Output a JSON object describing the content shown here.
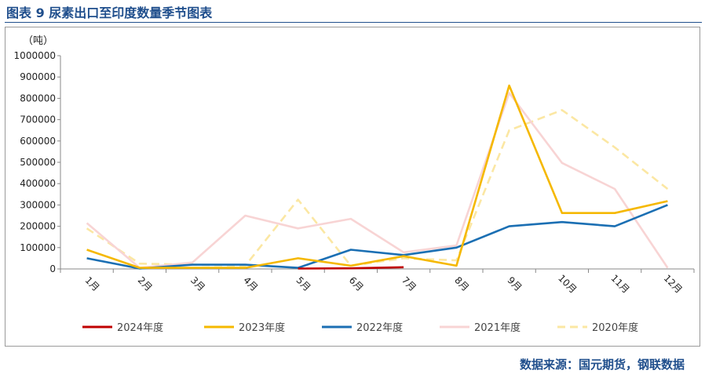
{
  "header": {
    "title": "图表 9  尿素出口至印度数量季节图表"
  },
  "footer": {
    "source": "数据来源：国元期货，钢联数据"
  },
  "chart_data": {
    "type": "line",
    "unit_label": "（吨）",
    "categories": [
      "1月",
      "2月",
      "3月",
      "4月",
      "5月",
      "6月",
      "7月",
      "8月",
      "9月",
      "10月",
      "11月",
      "12月"
    ],
    "ylim": [
      0,
      1000000
    ],
    "yticks": [
      0,
      100000,
      200000,
      300000,
      400000,
      500000,
      600000,
      700000,
      800000,
      900000,
      1000000
    ],
    "grid": false,
    "legend_position": "bottom",
    "series": [
      {
        "name": "2024年度",
        "color": "#c00000",
        "dash": "solid",
        "values": [
          null,
          null,
          null,
          null,
          2000,
          3000,
          8000,
          null,
          null,
          null,
          null,
          null
        ]
      },
      {
        "name": "2023年度",
        "color": "#f5b800",
        "dash": "solid",
        "values": [
          90000,
          5000,
          5000,
          5000,
          50000,
          15000,
          60000,
          15000,
          860000,
          262000,
          262000,
          318000
        ]
      },
      {
        "name": "2022年度",
        "color": "#1b6fb3",
        "dash": "solid",
        "values": [
          50000,
          2000,
          20000,
          20000,
          5000,
          90000,
          65000,
          100000,
          200000,
          220000,
          200000,
          300000
        ]
      },
      {
        "name": "2021年度",
        "color": "#f8d4d4",
        "dash": "solid",
        "values": [
          215000,
          5000,
          30000,
          250000,
          190000,
          235000,
          78000,
          110000,
          825000,
          497000,
          375000,
          5000
        ]
      },
      {
        "name": "2020年度",
        "color": "#fbe7a3",
        "dash": "dashed",
        "values": [
          190000,
          25000,
          20000,
          15000,
          325000,
          15000,
          50000,
          40000,
          650000,
          745000,
          570000,
          375000
        ]
      }
    ]
  }
}
